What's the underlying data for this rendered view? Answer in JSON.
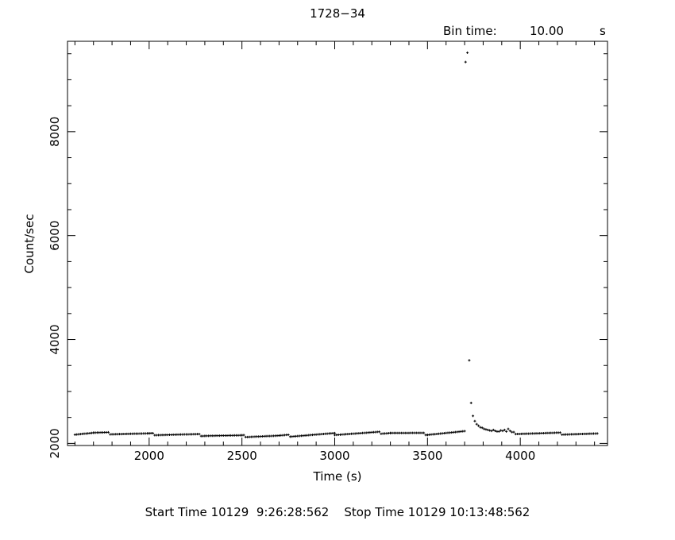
{
  "chart_data": {
    "type": "scatter",
    "title": "1728−34",
    "bin_time": {
      "label": "Bin time:",
      "value": "10.00",
      "unit": "s"
    },
    "xlabel": "Time (s)",
    "ylabel": "Count/sec",
    "xlim": [
      1560,
      4470
    ],
    "ylim": [
      1960,
      9740
    ],
    "x_ticks": [
      2000,
      2500,
      3000,
      3500,
      4000
    ],
    "x_tick_labels": [
      "2000",
      "2500",
      "3000",
      "3500",
      "4000"
    ],
    "y_ticks": [
      2000,
      4000,
      6000,
      8000
    ],
    "y_tick_labels": [
      "2000",
      "4000",
      "6000",
      "8000"
    ],
    "grid": false,
    "series": [
      {
        "baseline_segments": [
          {
            "x_start": 1600,
            "x_end": 1700,
            "y_start": 2180,
            "y_end": 2200
          },
          {
            "x_start": 1700,
            "x_end": 2000,
            "y_start": 2200,
            "y_end": 2180
          },
          {
            "x_start": 2000,
            "x_end": 2300,
            "y_start": 2180,
            "y_end": 2160
          },
          {
            "x_start": 2300,
            "x_end": 2500,
            "y_start": 2160,
            "y_end": 2140
          },
          {
            "x_start": 2500,
            "x_end": 2700,
            "y_start": 2140,
            "y_end": 2140
          },
          {
            "x_start": 2700,
            "x_end": 3000,
            "y_start": 2140,
            "y_end": 2180
          },
          {
            "x_start": 3000,
            "x_end": 3300,
            "y_start": 2180,
            "y_end": 2210
          },
          {
            "x_start": 3300,
            "x_end": 3500,
            "y_start": 2210,
            "y_end": 2180
          },
          {
            "x_start": 3500,
            "x_end": 3700,
            "y_start": 2180,
            "y_end": 2220
          }
        ],
        "flare_points": [
          {
            "x": 3705,
            "y": 9340
          },
          {
            "x": 3715,
            "y": 9520
          },
          {
            "x": 3725,
            "y": 3600
          },
          {
            "x": 3735,
            "y": 2780
          },
          {
            "x": 3745,
            "y": 2530
          },
          {
            "x": 3755,
            "y": 2430
          },
          {
            "x": 3765,
            "y": 2370
          },
          {
            "x": 3775,
            "y": 2340
          },
          {
            "x": 3785,
            "y": 2310
          },
          {
            "x": 3795,
            "y": 2300
          },
          {
            "x": 3805,
            "y": 2280
          },
          {
            "x": 3815,
            "y": 2270
          },
          {
            "x": 3825,
            "y": 2260
          },
          {
            "x": 3835,
            "y": 2250
          },
          {
            "x": 3845,
            "y": 2240
          },
          {
            "x": 3855,
            "y": 2260
          },
          {
            "x": 3865,
            "y": 2240
          },
          {
            "x": 3875,
            "y": 2230
          },
          {
            "x": 3885,
            "y": 2230
          },
          {
            "x": 3895,
            "y": 2250
          },
          {
            "x": 3905,
            "y": 2240
          },
          {
            "x": 3915,
            "y": 2260
          },
          {
            "x": 3925,
            "y": 2230
          },
          {
            "x": 3935,
            "y": 2280
          },
          {
            "x": 3945,
            "y": 2240
          }
        ],
        "tail_segments": [
          {
            "x_start": 3955,
            "x_end": 4420,
            "y_start": 2200,
            "y_end": 2180
          }
        ]
      }
    ]
  },
  "footer": {
    "start_label": "Start Time",
    "start_value": "10129  9:26:28:562",
    "stop_label": "Stop Time",
    "stop_value": "10129 10:13:48:562"
  }
}
